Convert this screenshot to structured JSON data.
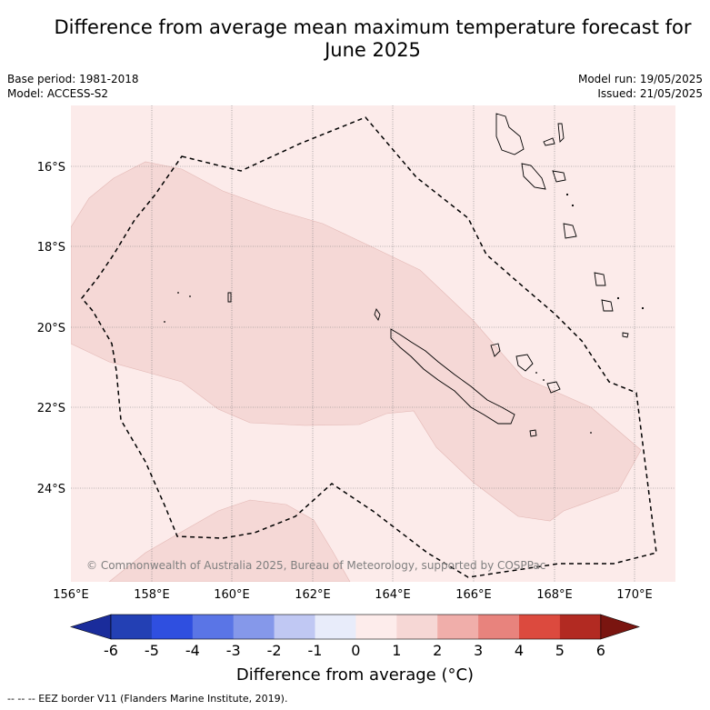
{
  "title": "Difference from average mean maximum temperature forecast for June 2025",
  "base_period": "Base period: 1981-2018",
  "model": "Model: ACCESS-S2",
  "model_run": "Model run: 19/05/2025",
  "issued": "Issued: 21/05/2025",
  "copyright": "© Commonwealth of Australia 2025, Bureau of Meteorology, supported by COSPPac",
  "colorbar": {
    "label": "Difference from average (°C)",
    "ticks": [
      "-6",
      "-5",
      "-4",
      "-3",
      "-2",
      "-1",
      "0",
      "1",
      "2",
      "3",
      "4",
      "5",
      "6"
    ],
    "colors": [
      "#1a2c9b",
      "#2340b4",
      "#2f4fe0",
      "#5a75e6",
      "#8598ea",
      "#c0c8f3",
      "#e8ecfa",
      "#fdeceb",
      "#f6d7d5",
      "#f0aeaa",
      "#e8837d",
      "#dc4a3e",
      "#b22a22",
      "#7a1510"
    ]
  },
  "map": {
    "lat_labels": [
      "16°S",
      "18°S",
      "20°S",
      "22°S",
      "24°S"
    ],
    "lon_labels": [
      "156°E",
      "158°E",
      "160°E",
      "162°E",
      "164°E",
      "166°E",
      "168°E",
      "170°E"
    ],
    "background_color": "#fcebea",
    "anomaly_color": "#f5d8d6"
  },
  "footer": "--  --  -- EEZ border V11 (Flanders Marine Institute, 2019)."
}
